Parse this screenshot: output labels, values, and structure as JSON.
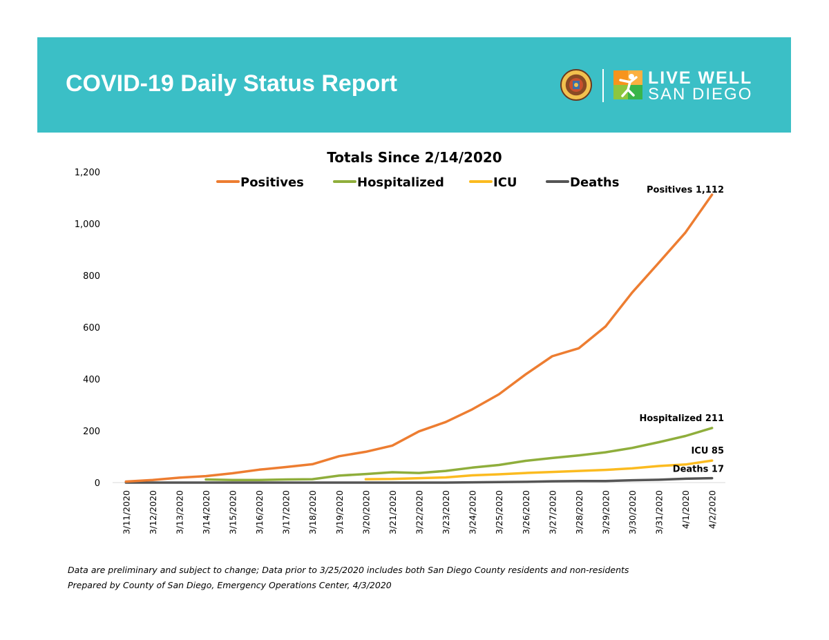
{
  "header": {
    "title": "COVID-19 Daily Status Report",
    "logo_line1": "LIVE WELL",
    "logo_line2": "SAN DIEGO",
    "seal_icon": "county-seal-icon",
    "logo_icon": "live-well-figure-icon",
    "banner_color": "#3bbfc6",
    "logo_orange": "#f7941d"
  },
  "chart_data": {
    "type": "line",
    "title": "Totals Since 2/14/2020",
    "xlabel": "",
    "ylabel": "",
    "ylim": [
      0,
      1200
    ],
    "yticks": [
      0,
      200,
      400,
      600,
      800,
      1000,
      1200
    ],
    "ytick_labels": [
      "0",
      "200",
      "400",
      "600",
      "800",
      "1,000",
      "1,200"
    ],
    "grid": false,
    "legend": "top",
    "x": [
      "3/11/2020",
      "3/12/2020",
      "3/13/2020",
      "3/14/2020",
      "3/15/2020",
      "3/16/2020",
      "3/17/2020",
      "3/18/2020",
      "3/19/2020",
      "3/20/2020",
      "3/21/2020",
      "3/22/2020",
      "3/23/2020",
      "3/24/2020",
      "3/25/2020",
      "3/26/2020",
      "3/27/2020",
      "3/28/2020",
      "3/29/2020",
      "3/30/2020",
      "3/31/2020",
      "4/1/2020",
      "4/2/2020"
    ],
    "series": [
      {
        "name": "Positives",
        "color": "#ed7d31",
        "values": [
          4,
          10,
          19,
          25,
          36,
          50,
          60,
          71,
          102,
          119,
          143,
          198,
          234,
          283,
          341,
          418,
          488,
          519,
          603,
          734,
          849,
          966,
          1112
        ],
        "end_label": "Positives 1,112"
      },
      {
        "name": "Hospitalized",
        "color": "#8fae3c",
        "values": [
          null,
          null,
          null,
          12,
          10,
          10,
          12,
          13,
          27,
          33,
          40,
          37,
          45,
          58,
          68,
          84,
          95,
          105,
          117,
          134,
          156,
          180,
          211
        ],
        "end_label": "Hospitalized 211"
      },
      {
        "name": "ICU",
        "color": "#fbbb20",
        "values": [
          null,
          null,
          null,
          null,
          null,
          null,
          null,
          null,
          null,
          13,
          14,
          17,
          20,
          28,
          32,
          37,
          41,
          45,
          49,
          55,
          64,
          70,
          85
        ],
        "end_label": "ICU 85"
      },
      {
        "name": "Deaths",
        "color": "#555555",
        "values": [
          0,
          0,
          0,
          0,
          0,
          0,
          0,
          0,
          0,
          0,
          0,
          0,
          0,
          1,
          2,
          3,
          5,
          6,
          6,
          9,
          11,
          15,
          17
        ],
        "end_label": "Deaths 17"
      }
    ]
  },
  "footer": {
    "note1": "Data are preliminary and subject to change; Data prior to 3/25/2020 includes both San Diego County residents and non-residents",
    "note2": "Prepared by County of San Diego, Emergency Operations Center, 4/3/2020"
  }
}
